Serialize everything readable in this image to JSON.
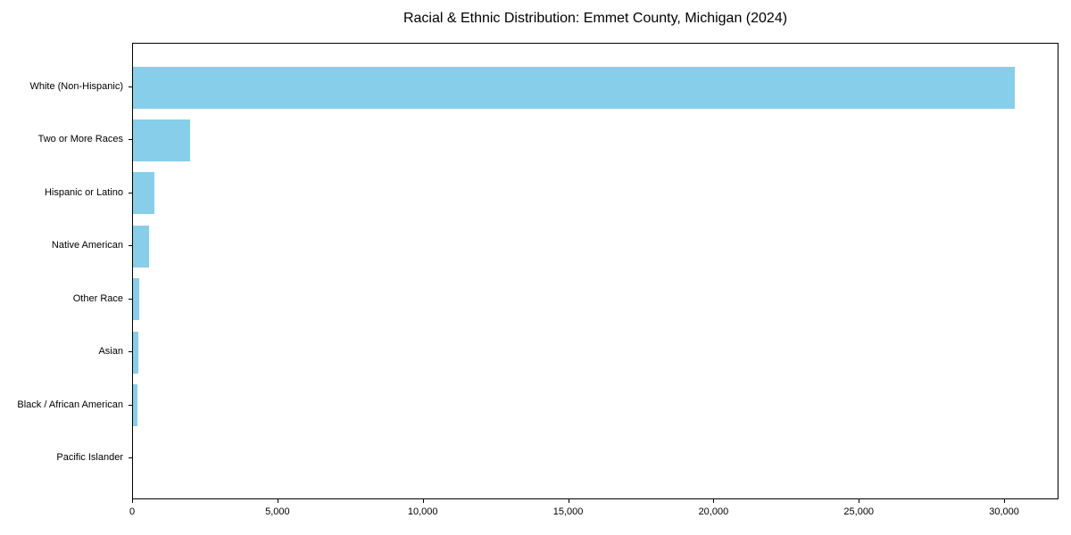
{
  "chart_data": {
    "type": "bar",
    "orientation": "horizontal",
    "title": "Racial & Ethnic Distribution: Emmet County, Michigan (2024)",
    "categories": [
      "White (Non-Hispanic)",
      "Two or More Races",
      "Hispanic or Latino",
      "Native American",
      "Other Race",
      "Asian",
      "Black / African American",
      "Pacific Islander"
    ],
    "values": [
      30350,
      1950,
      730,
      540,
      210,
      190,
      150,
      10
    ],
    "xlabel": "",
    "ylabel": "",
    "xlim": [
      0,
      31870
    ],
    "x_ticks": [
      0,
      5000,
      10000,
      15000,
      20000,
      25000,
      30000
    ],
    "x_tick_labels": [
      "0",
      "5,000",
      "10,000",
      "15,000",
      "20,000",
      "25,000",
      "30,000"
    ],
    "bar_color": "#87CEEB",
    "axis_color": "#000000",
    "text_color": "#000000",
    "background_color": "#ffffff",
    "grid": false,
    "legend_position": "none"
  }
}
